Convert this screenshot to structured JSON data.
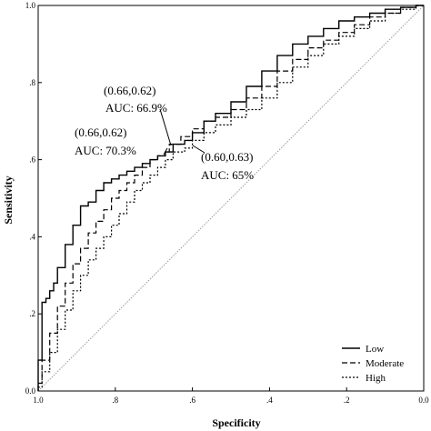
{
  "chart_data": {
    "type": "line",
    "title": "",
    "xlabel": "Specificity",
    "ylabel": "Sensitivity",
    "xlim": [
      1.0,
      0.0
    ],
    "ylim": [
      0.0,
      1.0
    ],
    "x_reversed": true,
    "grid": false,
    "legend_placement": "bottom-right",
    "x_ticks": [
      {
        "value": 1.0,
        "label": "1.0"
      },
      {
        "value": 0.8,
        "label": ".8"
      },
      {
        "value": 0.6,
        "label": ".6"
      },
      {
        "value": 0.4,
        "label": ".4"
      },
      {
        "value": 0.2,
        "label": ".2"
      },
      {
        "value": 0.0,
        "label": "0.0"
      }
    ],
    "y_ticks": [
      {
        "value": 0.0,
        "label": "0.0"
      },
      {
        "value": 0.2,
        "label": ".2"
      },
      {
        "value": 0.4,
        "label": ".4"
      },
      {
        "value": 0.6,
        "label": ".6"
      },
      {
        "value": 0.8,
        "label": ".8"
      },
      {
        "value": 1.0,
        "label": "1.0"
      }
    ],
    "reference_line": {
      "x": [
        1.0,
        0.0
      ],
      "y": [
        0.0,
        1.0
      ]
    },
    "series": [
      {
        "name": "Low",
        "style": "solid",
        "x": [
          1.0,
          0.995,
          0.99,
          0.99,
          0.98,
          0.97,
          0.96,
          0.95,
          0.93,
          0.91,
          0.89,
          0.87,
          0.85,
          0.83,
          0.81,
          0.79,
          0.77,
          0.75,
          0.73,
          0.71,
          0.69,
          0.67,
          0.65,
          0.62,
          0.6,
          0.57,
          0.54,
          0.5,
          0.46,
          0.42,
          0.38,
          0.34,
          0.3,
          0.26,
          0.22,
          0.18,
          0.14,
          0.1,
          0.06,
          0.02,
          0.0
        ],
        "y": [
          0.0,
          0.08,
          0.08,
          0.2,
          0.23,
          0.24,
          0.26,
          0.28,
          0.32,
          0.38,
          0.43,
          0.48,
          0.49,
          0.52,
          0.54,
          0.55,
          0.56,
          0.57,
          0.58,
          0.59,
          0.6,
          0.61,
          0.62,
          0.64,
          0.65,
          0.67,
          0.7,
          0.72,
          0.75,
          0.79,
          0.83,
          0.87,
          0.9,
          0.92,
          0.94,
          0.96,
          0.97,
          0.98,
          0.99,
          0.995,
          1.0
        ]
      },
      {
        "name": "Moderate",
        "style": "dashed",
        "x": [
          1.0,
          0.99,
          0.97,
          0.95,
          0.93,
          0.91,
          0.89,
          0.87,
          0.85,
          0.83,
          0.81,
          0.79,
          0.77,
          0.75,
          0.73,
          0.71,
          0.69,
          0.67,
          0.66,
          0.63,
          0.6,
          0.57,
          0.54,
          0.5,
          0.46,
          0.42,
          0.38,
          0.34,
          0.3,
          0.26,
          0.22,
          0.18,
          0.14,
          0.1,
          0.06,
          0.02,
          0.0
        ],
        "y": [
          0.0,
          0.02,
          0.08,
          0.15,
          0.22,
          0.28,
          0.33,
          0.37,
          0.41,
          0.44,
          0.47,
          0.5,
          0.52,
          0.54,
          0.56,
          0.58,
          0.6,
          0.61,
          0.62,
          0.64,
          0.66,
          0.68,
          0.7,
          0.71,
          0.73,
          0.76,
          0.79,
          0.83,
          0.86,
          0.89,
          0.91,
          0.93,
          0.95,
          0.97,
          0.98,
          0.995,
          1.0
        ]
      },
      {
        "name": "High",
        "style": "dotted",
        "x": [
          1.0,
          0.99,
          0.97,
          0.95,
          0.93,
          0.91,
          0.89,
          0.87,
          0.85,
          0.83,
          0.81,
          0.79,
          0.77,
          0.75,
          0.73,
          0.71,
          0.69,
          0.67,
          0.65,
          0.62,
          0.6,
          0.57,
          0.54,
          0.5,
          0.46,
          0.42,
          0.38,
          0.34,
          0.3,
          0.26,
          0.22,
          0.18,
          0.14,
          0.1,
          0.06,
          0.02,
          0.0
        ],
        "y": [
          0.0,
          0.01,
          0.05,
          0.1,
          0.16,
          0.21,
          0.26,
          0.3,
          0.34,
          0.37,
          0.4,
          0.43,
          0.46,
          0.49,
          0.52,
          0.54,
          0.56,
          0.58,
          0.6,
          0.62,
          0.63,
          0.65,
          0.67,
          0.69,
          0.71,
          0.73,
          0.76,
          0.8,
          0.84,
          0.87,
          0.9,
          0.92,
          0.94,
          0.96,
          0.98,
          0.99,
          1.0
        ]
      }
    ],
    "annotations": [
      {
        "line1": "(0.66,0.62)",
        "line2": "AUC: 66.9%",
        "point": [
          0.66,
          0.62
        ]
      },
      {
        "line1": "(0.66,0.62)",
        "line2": "AUC: 70.3%",
        "point": [
          0.66,
          0.62
        ]
      },
      {
        "line1": "(0.60,0.63)",
        "line2": "AUC: 65%",
        "point": [
          0.6,
          0.63
        ]
      }
    ]
  }
}
